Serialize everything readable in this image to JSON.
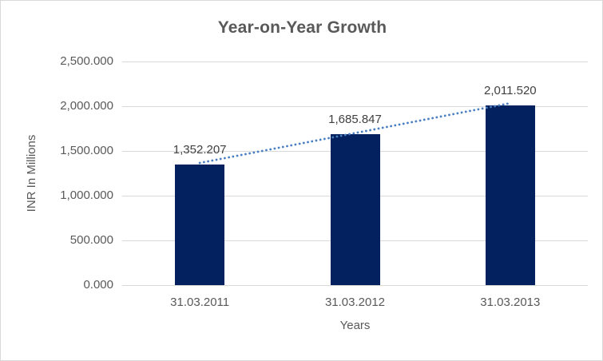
{
  "chart_data": {
    "type": "bar",
    "title": "Year-on-Year Growth",
    "xlabel": "Years",
    "ylabel": "INR In Millions",
    "categories": [
      "31.03.2011",
      "31.03.2012",
      "31.03.2013"
    ],
    "values": [
      1352.207,
      1685.847,
      2011.52
    ],
    "data_labels": [
      "1,352.207",
      "1,685.847",
      "2,011.520"
    ],
    "ylim": [
      0,
      2500
    ],
    "ytick_values": [
      0,
      500,
      1000,
      1500,
      2000,
      2500
    ],
    "ytick_labels": [
      "0.000",
      "500.000",
      "1,000.000",
      "1,500.000",
      "2,000.000",
      "2,500.000"
    ],
    "grid": true,
    "legend": "none",
    "trendline": {
      "type": "linear",
      "style": "dotted"
    },
    "colors": {
      "bar": "#03215e",
      "trendline": "#4a7fc1",
      "gridline": "#d9d9d9",
      "title": "#595959",
      "axis_text": "#595959",
      "data_label": "#404040",
      "background": "#ffffff",
      "border": "#d9d9d9"
    }
  }
}
